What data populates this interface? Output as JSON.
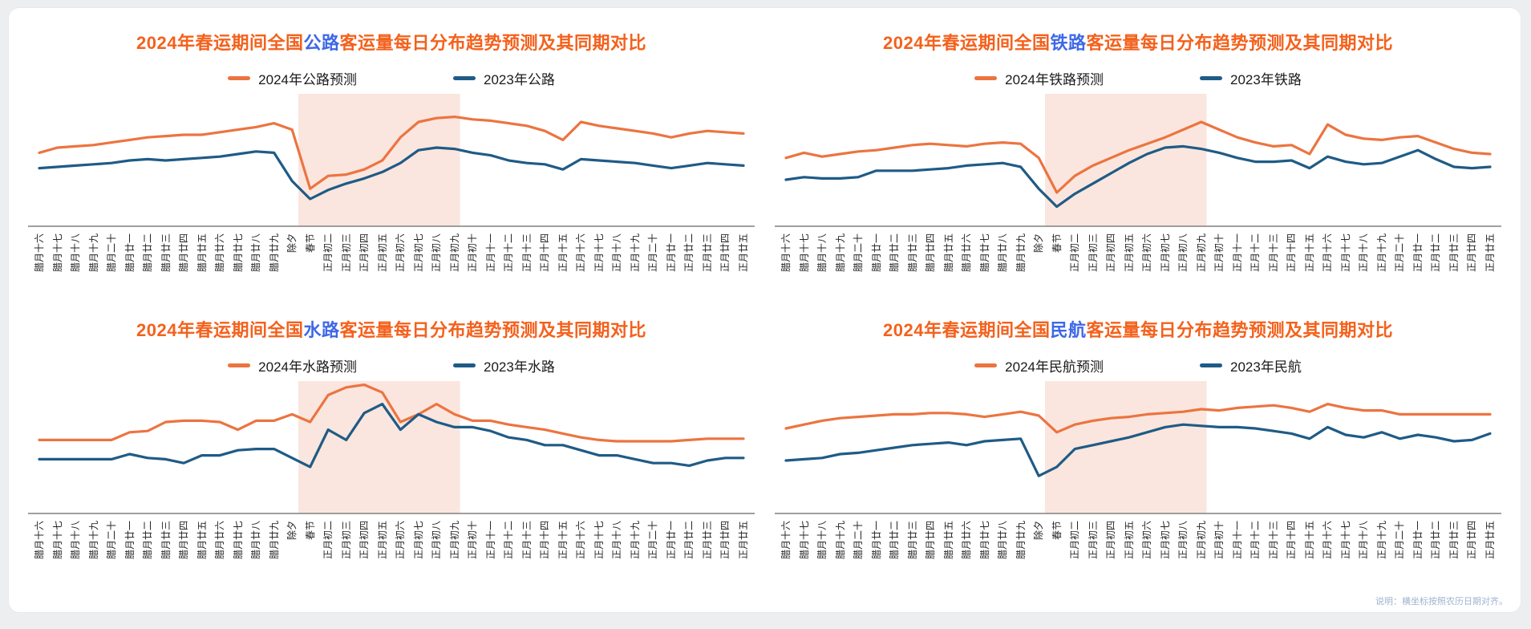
{
  "colors": {
    "series_2024": "#EC7440",
    "series_2023": "#1F5B86",
    "holiday_band": "#FAE6DE",
    "title_orange": "#F4611C",
    "title_blue": "#3E68E7",
    "axis": "#808080",
    "tick_label": "#262626",
    "footnote": "#9FB3CF",
    "card_background": "#FFFFFF",
    "page_background": "#ECEEF0"
  },
  "footnote": "说明：横坐标按照农历日期对齐。",
  "chart_data": [
    {
      "id": "highway",
      "type": "line",
      "title": "2024年春运期间全国公路客运量每日分布趋势预测及其同期对比",
      "title_parts": {
        "pre": "2024年春运期间全国",
        "mode": "公路",
        "suffix": "客运量每日分布趋势预测及其同期对比"
      },
      "legend_position": "top",
      "y_axis_hidden": true,
      "ylim": [
        0,
        100
      ],
      "highlight_band": {
        "from_label": "春节",
        "to_label": "正月初九",
        "from_index": 14.35,
        "to_index": 23.3
      },
      "categories": [
        "腊月十六",
        "腊月十七",
        "腊月十八",
        "腊月十九",
        "腊月二十",
        "腊月廿一",
        "腊月廿二",
        "腊月廿三",
        "腊月廿四",
        "腊月廿五",
        "腊月廿六",
        "腊月廿七",
        "腊月廿八",
        "腊月廿九",
        "除夕",
        "春节",
        "正月初二",
        "正月初三",
        "正月初四",
        "正月初五",
        "正月初六",
        "正月初七",
        "正月初八",
        "正月初九",
        "正月初十",
        "正月十一",
        "正月十二",
        "正月十三",
        "正月十四",
        "正月十五",
        "正月十六",
        "正月十七",
        "正月十八",
        "正月十九",
        "正月二十",
        "正月廿一",
        "正月廿二",
        "正月廿三",
        "正月廿四",
        "正月廿五"
      ],
      "series": [
        {
          "name": "2024年公路预测",
          "color_key": "series_2024",
          "values": [
            56,
            60,
            61,
            62,
            64,
            66,
            68,
            69,
            70,
            70,
            72,
            74,
            76,
            79,
            74,
            28,
            38,
            39,
            43,
            50,
            68,
            80,
            83,
            84,
            82,
            81,
            79,
            77,
            73,
            66,
            80,
            77,
            75,
            73,
            71,
            68,
            71,
            73,
            72,
            71
          ]
        },
        {
          "name": "2023年公路",
          "color_key": "series_2023",
          "values": [
            44,
            45,
            46,
            47,
            48,
            50,
            51,
            50,
            51,
            52,
            53,
            55,
            57,
            56,
            34,
            20,
            27,
            32,
            36,
            41,
            48,
            58,
            60,
            59,
            56,
            54,
            50,
            48,
            47,
            43,
            51,
            50,
            49,
            48,
            46,
            44,
            46,
            48,
            47,
            46
          ]
        }
      ]
    },
    {
      "id": "railway",
      "type": "line",
      "title": "2024年春运期间全国铁路客运量每日分布趋势预测及其同期对比",
      "title_parts": {
        "pre": "2024年春运期间全国",
        "mode": "铁路",
        "suffix": "客运量每日分布趋势预测及其同期对比"
      },
      "legend_position": "top",
      "y_axis_hidden": true,
      "ylim": [
        0,
        100
      ],
      "highlight_band": {
        "from_label": "春节",
        "to_label": "正月初九",
        "from_index": 14.35,
        "to_index": 23.3
      },
      "categories": [
        "腊月十六",
        "腊月十七",
        "腊月十八",
        "腊月十九",
        "腊月二十",
        "腊月廿一",
        "腊月廿二",
        "腊月廿三",
        "腊月廿四",
        "腊月廿五",
        "腊月廿六",
        "腊月廿七",
        "腊月廿八",
        "腊月廿九",
        "除夕",
        "春节",
        "正月初二",
        "正月初三",
        "正月初四",
        "正月初五",
        "正月初六",
        "正月初七",
        "正月初八",
        "正月初九",
        "正月初十",
        "正月十一",
        "正月十二",
        "正月十三",
        "正月十四",
        "正月十五",
        "正月十六",
        "正月十七",
        "正月十八",
        "正月十九",
        "正月二十",
        "正月廿一",
        "正月廿二",
        "正月廿三",
        "正月廿四",
        "正月廿五"
      ],
      "series": [
        {
          "name": "2024年铁路预测",
          "color_key": "series_2024",
          "values": [
            52,
            56,
            53,
            55,
            57,
            58,
            60,
            62,
            63,
            62,
            61,
            63,
            64,
            63,
            52,
            25,
            38,
            46,
            52,
            58,
            63,
            68,
            74,
            80,
            74,
            68,
            64,
            61,
            62,
            55,
            78,
            70,
            67,
            66,
            68,
            69,
            64,
            59,
            56,
            55
          ]
        },
        {
          "name": "2023年铁路",
          "color_key": "series_2023",
          "values": [
            35,
            37,
            36,
            36,
            37,
            42,
            42,
            42,
            43,
            44,
            46,
            47,
            48,
            45,
            28,
            14,
            24,
            32,
            40,
            48,
            55,
            60,
            61,
            59,
            56,
            52,
            49,
            49,
            50,
            44,
            53,
            49,
            47,
            48,
            53,
            58,
            51,
            45,
            44,
            45
          ]
        }
      ]
    },
    {
      "id": "waterway",
      "type": "line",
      "title": "2024年春运期间全国水路客运量每日分布趋势预测及其同期对比",
      "title_parts": {
        "pre": "2024年春运期间全国",
        "mode": "水路",
        "suffix": "客运量每日分布趋势预测及其同期对比"
      },
      "legend_position": "top",
      "y_axis_hidden": true,
      "ylim": [
        0,
        100
      ],
      "highlight_band": {
        "from_label": "春节",
        "to_label": "正月初九",
        "from_index": 14.35,
        "to_index": 23.3
      },
      "categories": [
        "腊月十六",
        "腊月十七",
        "腊月十八",
        "腊月十九",
        "腊月二十",
        "腊月廿一",
        "腊月廿二",
        "腊月廿三",
        "腊月廿四",
        "腊月廿五",
        "腊月廿六",
        "腊月廿七",
        "腊月廿八",
        "腊月廿九",
        "除夕",
        "春节",
        "正月初二",
        "正月初三",
        "正月初四",
        "正月初五",
        "正月初六",
        "正月初七",
        "正月初八",
        "正月初九",
        "正月初十",
        "正月十一",
        "正月十二",
        "正月十三",
        "正月十四",
        "正月十五",
        "正月十六",
        "正月十七",
        "正月十八",
        "正月十九",
        "正月二十",
        "正月廿一",
        "正月廿二",
        "正月廿三",
        "正月廿四",
        "正月廿五"
      ],
      "series": [
        {
          "name": "2024年水路预测",
          "color_key": "series_2024",
          "values": [
            56,
            56,
            56,
            56,
            56,
            62,
            63,
            70,
            71,
            71,
            70,
            64,
            71,
            71,
            76,
            70,
            91,
            97,
            99,
            93,
            70,
            76,
            84,
            76,
            71,
            71,
            68,
            66,
            64,
            61,
            58,
            56,
            55,
            55,
            55,
            55,
            56,
            57,
            57,
            57
          ]
        },
        {
          "name": "2023年水路",
          "color_key": "series_2023",
          "values": [
            41,
            41,
            41,
            41,
            41,
            45,
            42,
            41,
            38,
            44,
            44,
            48,
            49,
            49,
            42,
            35,
            64,
            56,
            77,
            84,
            64,
            76,
            70,
            66,
            66,
            63,
            58,
            56,
            52,
            52,
            48,
            44,
            44,
            41,
            38,
            38,
            36,
            40,
            42,
            42
          ]
        }
      ]
    },
    {
      "id": "civil-aviation",
      "type": "line",
      "title": "2024年春运期间全国民航客运量每日分布趋势预测及其同期对比",
      "title_parts": {
        "pre": "2024年春运期间全国",
        "mode": "民航",
        "suffix": "客运量每日分布趋势预测及其同期对比"
      },
      "legend_position": "top",
      "y_axis_hidden": true,
      "ylim": [
        0,
        100
      ],
      "highlight_band": {
        "from_label": "春节",
        "to_label": "正月初九",
        "from_index": 14.35,
        "to_index": 23.3
      },
      "categories": [
        "腊月十六",
        "腊月十七",
        "腊月十八",
        "腊月十九",
        "腊月二十",
        "腊月廿一",
        "腊月廿二",
        "腊月廿三",
        "腊月廿四",
        "腊月廿五",
        "腊月廿六",
        "腊月廿七",
        "腊月廿八",
        "腊月廿九",
        "除夕",
        "春节",
        "正月初二",
        "正月初三",
        "正月初四",
        "正月初五",
        "正月初六",
        "正月初七",
        "正月初八",
        "正月初九",
        "正月初十",
        "正月十一",
        "正月十二",
        "正月十三",
        "正月十四",
        "正月十五",
        "正月十六",
        "正月十七",
        "正月十八",
        "正月十九",
        "正月二十",
        "正月廿一",
        "正月廿二",
        "正月廿三",
        "正月廿四",
        "正月廿五"
      ],
      "series": [
        {
          "name": "2024年民航预测",
          "color_key": "series_2024",
          "values": [
            65,
            68,
            71,
            73,
            74,
            75,
            76,
            76,
            77,
            77,
            76,
            74,
            76,
            78,
            75,
            62,
            68,
            71,
            73,
            74,
            76,
            77,
            78,
            80,
            79,
            81,
            82,
            83,
            81,
            78,
            84,
            81,
            79,
            79,
            76,
            76,
            76,
            76,
            76,
            76
          ]
        },
        {
          "name": "2023年民航",
          "color_key": "series_2023",
          "values": [
            40,
            41,
            42,
            45,
            46,
            48,
            50,
            52,
            53,
            54,
            52,
            55,
            56,
            57,
            28,
            35,
            49,
            52,
            55,
            58,
            62,
            66,
            68,
            67,
            66,
            66,
            65,
            63,
            61,
            57,
            66,
            60,
            58,
            62,
            57,
            60,
            58,
            55,
            56,
            61
          ]
        }
      ]
    }
  ]
}
